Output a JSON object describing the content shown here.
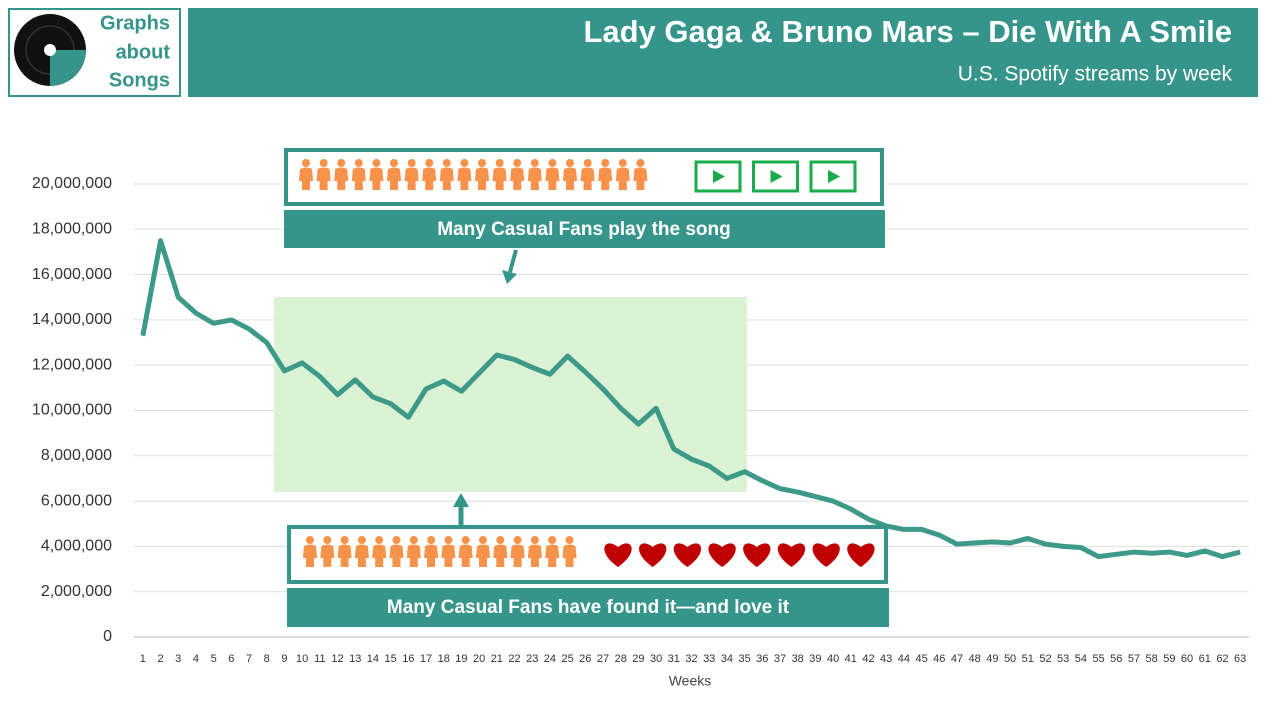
{
  "header": {
    "logo": [
      "Graphs",
      "about",
      "Songs"
    ]
  },
  "chart_data": {
    "type": "line",
    "title": "Lady Gaga & Bruno Mars – Die With A Smile",
    "subtitle": "U.S. Spotify streams  by week",
    "x_label": "Weeks",
    "x": [
      1,
      2,
      3,
      4,
      5,
      6,
      7,
      8,
      9,
      10,
      11,
      12,
      13,
      14,
      15,
      16,
      17,
      18,
      19,
      20,
      21,
      22,
      23,
      24,
      25,
      26,
      27,
      28,
      29,
      30,
      31,
      32,
      33,
      34,
      35,
      36,
      37,
      38,
      39,
      40,
      41,
      42,
      43,
      44,
      45,
      46,
      47,
      48,
      49,
      50,
      51,
      52,
      53,
      54,
      55,
      56,
      57,
      58,
      59,
      60,
      61,
      62,
      63
    ],
    "values": [
      13300000,
      17500000,
      15000000,
      14300000,
      13850000,
      14000000,
      13600000,
      13000000,
      11750000,
      12100000,
      11500000,
      10700000,
      11350000,
      10600000,
      10300000,
      9700000,
      10950000,
      11300000,
      10850000,
      11650000,
      12450000,
      12250000,
      11900000,
      11600000,
      12400000,
      11700000,
      10950000,
      10100000,
      9400000,
      10100000,
      8300000,
      7850000,
      7550000,
      7000000,
      7300000,
      6900000,
      6550000,
      6400000,
      6200000,
      6000000,
      5650000,
      5200000,
      4900000,
      4750000,
      4750000,
      4500000,
      4100000,
      4150000,
      4200000,
      4150000,
      4350000,
      4100000,
      4000000,
      3950000,
      3550000,
      3650000,
      3750000,
      3700000,
      3750000,
      3600000,
      3800000,
      3550000,
      3750000
    ],
    "color": "#3d9a88",
    "xlim": [
      0.5,
      63.5
    ],
    "ylim": [
      0,
      20000000
    ],
    "yticks": [
      0,
      {
        "value": 2000000,
        "label": "2,000,000"
      },
      {
        "value": 4000000,
        "label": "4,000,000"
      },
      {
        "value": 6000000,
        "label": "6,000,000"
      },
      {
        "value": 8000000,
        "label": "8,000,000"
      },
      {
        "value": 10000000,
        "label": "10,000,000"
      },
      {
        "value": 12000000,
        "label": "12,000,000"
      },
      {
        "value": 14000000,
        "label": "14,000,000"
      },
      {
        "value": 16000000,
        "label": "16,000,000"
      },
      {
        "value": 18000000,
        "label": "18,000,000"
      },
      {
        "value": 20000000,
        "label": "20,000,000"
      }
    ],
    "grid": true,
    "annotations": [
      "Many Casual Fans play the song",
      "Many Casual Fans have found it—and love it"
    ]
  }
}
